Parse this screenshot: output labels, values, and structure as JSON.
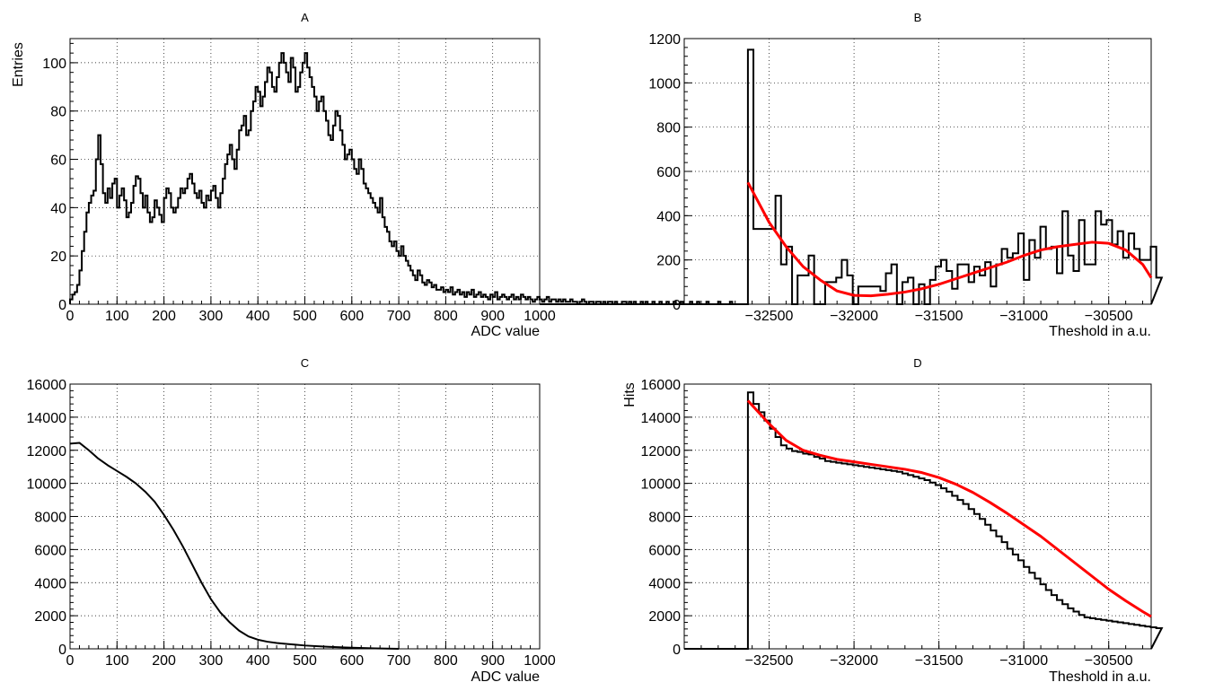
{
  "chart_data": [
    {
      "id": "A",
      "type": "histogram",
      "title": "A",
      "xlabel": "ADC value",
      "ylabel": "Entries",
      "xlim": [
        0,
        1000
      ],
      "ylim": [
        0,
        110
      ],
      "xticks": [
        0,
        100,
        200,
        300,
        400,
        500,
        600,
        700,
        800,
        900,
        1000
      ],
      "yticks": [
        0,
        20,
        40,
        60,
        80,
        100
      ],
      "grid": true,
      "bin_width": 5,
      "series": [
        {
          "values": [
            2,
            4,
            5,
            8,
            14,
            22,
            30,
            38,
            42,
            45,
            47,
            60,
            70,
            58,
            46,
            42,
            48,
            44,
            50,
            52,
            40,
            45,
            48,
            43,
            36,
            38,
            42,
            49,
            53,
            52,
            46,
            40,
            45,
            38,
            34,
            36,
            43,
            40,
            37,
            34,
            44,
            48,
            46,
            40,
            38,
            40,
            44,
            48,
            46,
            48,
            52,
            54,
            50,
            46,
            44,
            47,
            42,
            40,
            45,
            43,
            47,
            49,
            44,
            40,
            46,
            52,
            58,
            62,
            66,
            60,
            56,
            64,
            72,
            74,
            78,
            70,
            72,
            80,
            84,
            90,
            88,
            82,
            86,
            92,
            98,
            96,
            90,
            88,
            94,
            100,
            104,
            100,
            96,
            92,
            102,
            98,
            88,
            90,
            96,
            100,
            104,
            98,
            94,
            90,
            86,
            80,
            84,
            86,
            80,
            76,
            70,
            68,
            74,
            80,
            78,
            72,
            66,
            60,
            62,
            64,
            60,
            56,
            54,
            60,
            56,
            50,
            48,
            46,
            44,
            42,
            40,
            38,
            44,
            36,
            32,
            30,
            26,
            24,
            26,
            22,
            20,
            24,
            20,
            18,
            16,
            14,
            12,
            10,
            14,
            12,
            9,
            8,
            10,
            9,
            7,
            8,
            6,
            6,
            7,
            5,
            6,
            5,
            7,
            4,
            5,
            6,
            4,
            5,
            3,
            5,
            4,
            6,
            3,
            4,
            5,
            3,
            4,
            3,
            2,
            4,
            3,
            5,
            2,
            3,
            4,
            3,
            2,
            3,
            4,
            2,
            3,
            2,
            4,
            3,
            2,
            3,
            2,
            1,
            2,
            3,
            2,
            1,
            2,
            3,
            1,
            2,
            2,
            1,
            2,
            1,
            2,
            1,
            1,
            2,
            1,
            1,
            0,
            1,
            2,
            1,
            0,
            1,
            1,
            0,
            1,
            1,
            0,
            1,
            0,
            1,
            1,
            0,
            1,
            0,
            0,
            1,
            1,
            0,
            1,
            0,
            1,
            0,
            0,
            1,
            0,
            1,
            0,
            0,
            1,
            0,
            0,
            1,
            0,
            0,
            1,
            0,
            0,
            1,
            0,
            0,
            1,
            0,
            0,
            0,
            1,
            0,
            0,
            1,
            0,
            0,
            0,
            1,
            0,
            0,
            0,
            0,
            1,
            0,
            0,
            0,
            0,
            1,
            0,
            0,
            0,
            0
          ]
        }
      ]
    },
    {
      "id": "B",
      "type": "histogram",
      "title": "B",
      "xlabel": "Theshold in a.u.",
      "ylabel": "",
      "xlim": [
        -33000,
        -30250
      ],
      "ylim": [
        0,
        1200
      ],
      "xticks": [
        -32500,
        -32000,
        -31500,
        -31000,
        -30500
      ],
      "yticks": [
        0,
        200,
        400,
        600,
        800,
        1000,
        1200
      ],
      "grid": true,
      "bin_start": -32625,
      "bin_width": 32.5,
      "series": [
        {
          "values": [
            1150,
            340,
            340,
            340,
            340,
            490,
            180,
            260,
            0,
            130,
            130,
            220,
            0,
            0,
            100,
            100,
            120,
            200,
            130,
            0,
            80,
            80,
            80,
            80,
            60,
            140,
            180,
            0,
            100,
            120,
            0,
            90,
            0,
            110,
            170,
            200,
            150,
            70,
            180,
            180,
            100,
            170,
            130,
            190,
            80,
            180,
            250,
            210,
            230,
            320,
            110,
            290,
            210,
            350,
            250,
            260,
            140,
            420,
            220,
            150,
            380,
            180,
            180,
            420,
            360,
            380,
            270,
            330,
            210,
            320,
            250,
            200,
            200,
            260,
            120
          ],
          "fit": {
            "x": [
              -32625,
              -32500,
              -32400,
              -32300,
              -32200,
              -32100,
              -32000,
              -31900,
              -31800,
              -31700,
              -31600,
              -31500,
              -31400,
              -31300,
              -31200,
              -31100,
              -31000,
              -30900,
              -30800,
              -30700,
              -30600,
              -30500,
              -30400,
              -30300,
              -30250
            ],
            "y": [
              550,
              370,
              260,
              170,
              110,
              60,
              40,
              38,
              45,
              55,
              70,
              90,
              115,
              140,
              165,
              190,
              220,
              245,
              260,
              270,
              280,
              275,
              245,
              180,
              120
            ]
          }
        }
      ]
    },
    {
      "id": "C",
      "type": "line",
      "title": "C",
      "xlabel": "ADC value",
      "ylabel": "",
      "xlim": [
        0,
        1000
      ],
      "ylim": [
        0,
        16000
      ],
      "xticks": [
        0,
        100,
        200,
        300,
        400,
        500,
        600,
        700,
        800,
        900,
        1000
      ],
      "yticks": [
        0,
        2000,
        4000,
        6000,
        8000,
        10000,
        12000,
        14000,
        16000
      ],
      "grid": true,
      "series": [
        {
          "x": [
            0,
            20,
            40,
            60,
            80,
            100,
            120,
            140,
            160,
            180,
            200,
            220,
            240,
            260,
            280,
            300,
            320,
            340,
            360,
            380,
            400,
            420,
            440,
            460,
            480,
            500,
            550,
            600,
            650,
            700
          ],
          "y": [
            12400,
            12450,
            12000,
            11500,
            11100,
            10750,
            10400,
            10000,
            9500,
            8900,
            8100,
            7200,
            6200,
            5100,
            4000,
            3000,
            2200,
            1600,
            1100,
            750,
            550,
            430,
            350,
            300,
            250,
            200,
            120,
            70,
            30,
            0
          ]
        }
      ]
    },
    {
      "id": "D",
      "type": "histogram",
      "title": "D",
      "xlabel": "Theshold in a.u.",
      "ylabel": "Hits",
      "xlim": [
        -33000,
        -30250
      ],
      "ylim": [
        0,
        16000
      ],
      "xticks": [
        -32500,
        -32000,
        -31500,
        -31000,
        -30500
      ],
      "yticks": [
        0,
        2000,
        4000,
        6000,
        8000,
        10000,
        12000,
        14000,
        16000
      ],
      "grid": true,
      "bin_start": -32625,
      "bin_width": 32.5,
      "series": [
        {
          "values": [
            15500,
            14800,
            14300,
            13800,
            13300,
            12800,
            12300,
            12100,
            11950,
            11900,
            11800,
            11750,
            11600,
            11500,
            11350,
            11300,
            11250,
            11200,
            11150,
            11100,
            11050,
            11000,
            10950,
            10900,
            10850,
            10800,
            10750,
            10700,
            10600,
            10500,
            10400,
            10300,
            10200,
            10050,
            9900,
            9700,
            9500,
            9250,
            9000,
            8750,
            8450,
            8150,
            7850,
            7500,
            7150,
            6800,
            6450,
            6050,
            5700,
            5350,
            4950,
            4600,
            4250,
            3900,
            3550,
            3250,
            2950,
            2700,
            2450,
            2250,
            2050,
            1900,
            1850,
            1800,
            1750,
            1700,
            1650,
            1600,
            1550,
            1500,
            1450,
            1400,
            1350,
            1300,
            1250
          ],
          "fit": {
            "x": [
              -32625,
              -32500,
              -32400,
              -32300,
              -32200,
              -32100,
              -32000,
              -31900,
              -31800,
              -31700,
              -31600,
              -31500,
              -31400,
              -31300,
              -31200,
              -31100,
              -31000,
              -30900,
              -30800,
              -30700,
              -30600,
              -30500,
              -30400,
              -30300,
              -30250
            ],
            "y": [
              15000,
              13600,
              12600,
              12000,
              11700,
              11450,
              11300,
              11150,
              11000,
              10850,
              10650,
              10350,
              9950,
              9450,
              8850,
              8200,
              7500,
              6800,
              6000,
              5200,
              4400,
              3600,
              2900,
              2250,
              1950
            ]
          }
        }
      ]
    }
  ]
}
